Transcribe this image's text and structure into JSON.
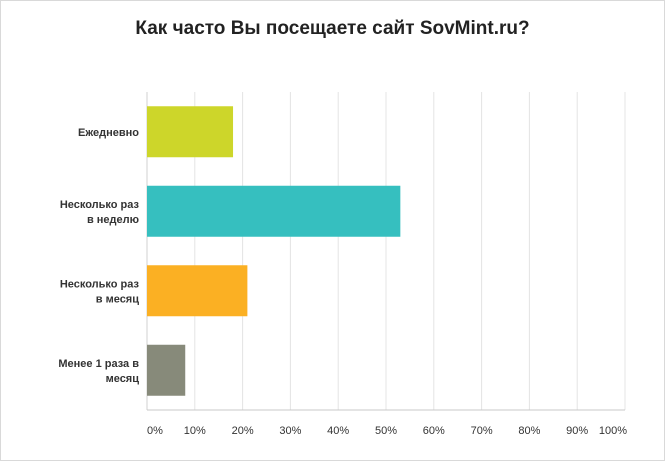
{
  "chart_data": {
    "type": "bar",
    "orientation": "horizontal",
    "title": "Как часто Вы посещаете сайт SovMint.ru?",
    "categories": [
      [
        "Ежедневно"
      ],
      [
        "Несколько раз",
        "в неделю"
      ],
      [
        "Несколько раз",
        "в месяц"
      ],
      [
        "Менее 1 раза в",
        "месяц"
      ]
    ],
    "values": [
      18,
      53,
      21,
      8
    ],
    "colors": [
      "#cdd62a",
      "#36bfbf",
      "#fbb023",
      "#878a7a"
    ],
    "xlim": [
      0,
      100
    ],
    "xticks": [
      0,
      10,
      20,
      30,
      40,
      50,
      60,
      70,
      80,
      90,
      100
    ],
    "tick_labels": [
      "0%",
      "10%",
      "20%",
      "30%",
      "40%",
      "50%",
      "60%",
      "70%",
      "80%",
      "90%",
      "100%"
    ],
    "grid": true,
    "legend": "none"
  }
}
